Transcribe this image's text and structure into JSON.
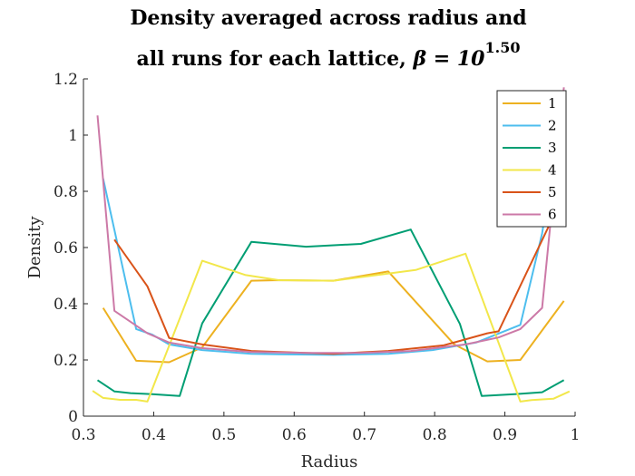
{
  "chart_data": {
    "type": "line",
    "title_line1": "Density averaged across radius and",
    "title_line2": "all runs for each lattice, ",
    "title_beta": "β = 10",
    "title_exponent": "1.50",
    "xlabel": "Radius",
    "ylabel": "Density",
    "xlim": [
      0.3,
      1.0
    ],
    "ylim": [
      0,
      1.2
    ],
    "xticks": [
      "0.3",
      "0.4",
      "0.5",
      "0.6",
      "0.7",
      "0.8",
      "0.9",
      "1"
    ],
    "yticks": [
      "0",
      "0.2",
      "0.4",
      "0.6",
      "0.8",
      "1",
      "1.2"
    ],
    "legend_position": "top-right",
    "series": [
      {
        "name": "1",
        "color": "#EDB120",
        "x": [
          0.328,
          0.375,
          0.422,
          0.469,
          0.539,
          0.578,
          0.656,
          0.734,
          0.828,
          0.875,
          0.922,
          0.984
        ],
        "y": [
          0.385,
          0.197,
          0.192,
          0.245,
          0.482,
          0.484,
          0.482,
          0.515,
          0.255,
          0.195,
          0.2,
          0.41
        ]
      },
      {
        "name": "2",
        "color": "#4DBEEE",
        "x": [
          0.328,
          0.375,
          0.398,
          0.422,
          0.469,
          0.539,
          0.578,
          0.656,
          0.734,
          0.797,
          0.859,
          0.922,
          0.953,
          0.984
        ],
        "y": [
          0.845,
          0.31,
          0.29,
          0.255,
          0.235,
          0.222,
          0.22,
          0.218,
          0.222,
          0.235,
          0.262,
          0.325,
          0.65,
          1.15
        ]
      },
      {
        "name": "3",
        "color": "#009E73",
        "x": [
          0.32,
          0.344,
          0.367,
          0.398,
          0.437,
          0.469,
          0.539,
          0.617,
          0.695,
          0.766,
          0.836,
          0.867,
          0.914,
          0.953,
          0.984
        ],
        "y": [
          0.128,
          0.088,
          0.082,
          0.078,
          0.072,
          0.33,
          0.62,
          0.603,
          0.613,
          0.664,
          0.328,
          0.072,
          0.078,
          0.085,
          0.128
        ]
      },
      {
        "name": "4",
        "color": "#F2E74A",
        "x": [
          0.313,
          0.328,
          0.352,
          0.375,
          0.391,
          0.469,
          0.531,
          0.578,
          0.656,
          0.773,
          0.844,
          0.922,
          0.938,
          0.969,
          0.992
        ],
        "y": [
          0.09,
          0.065,
          0.058,
          0.058,
          0.052,
          0.553,
          0.502,
          0.484,
          0.482,
          0.52,
          0.578,
          0.052,
          0.057,
          0.062,
          0.088
        ]
      },
      {
        "name": "5",
        "color": "#D95319",
        "x": [
          0.344,
          0.391,
          0.422,
          0.469,
          0.539,
          0.617,
          0.656,
          0.734,
          0.813,
          0.875,
          0.891,
          0.969
        ],
        "y": [
          0.628,
          0.462,
          0.278,
          0.255,
          0.232,
          0.225,
          0.222,
          0.232,
          0.252,
          0.295,
          0.302,
          0.71
        ]
      },
      {
        "name": "6",
        "color": "#CC79A7",
        "x": [
          0.32,
          0.344,
          0.391,
          0.422,
          0.469,
          0.539,
          0.617,
          0.695,
          0.766,
          0.844,
          0.891,
          0.922,
          0.953,
          0.984
        ],
        "y": [
          1.07,
          0.375,
          0.295,
          0.262,
          0.242,
          0.228,
          0.225,
          0.225,
          0.232,
          0.255,
          0.28,
          0.31,
          0.385,
          1.17
        ]
      }
    ]
  }
}
